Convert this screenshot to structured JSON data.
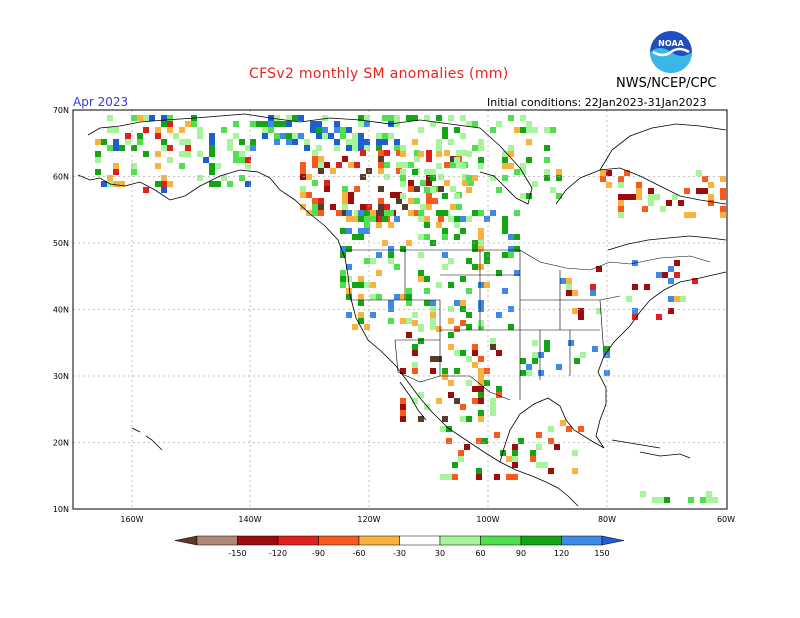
{
  "title": "CFSv2 monthly SM anomalies (mm)",
  "period": "Apr 2023",
  "initial_conditions": "Initial conditions: 22Jan2023-31Jan2023",
  "agency": "NWS/NCEP/CPC",
  "logo_text": "NOAA",
  "lat_labels": [
    "70N",
    "60N",
    "50N",
    "40N",
    "30N",
    "20N",
    "10N"
  ],
  "lon_labels": [
    "160W",
    "140W",
    "120W",
    "100W",
    "80W",
    "60W"
  ],
  "colorbar": {
    "labels": [
      "-150",
      "-120",
      "-90",
      "-60",
      "-30",
      "30",
      "60",
      "90",
      "120",
      "150"
    ],
    "colors": [
      "#5a3a2a",
      "#b08878",
      "#9c0c0c",
      "#e01f1f",
      "#f75a1c",
      "#f9b23d",
      "#ffffff",
      "#a6f49c",
      "#4fe04f",
      "#14a514",
      "#3f8ae6",
      "#1d5fd0"
    ]
  },
  "anomaly_colors": {
    "dry_extreme": "#5a3a2a",
    "dry_strong": "#9c0c0c",
    "dry": "#e01f1f",
    "dry_moderate": "#f75a1c",
    "dry_weak": "#f9b23d",
    "wet_weak": "#a6f49c",
    "wet_moderate": "#4fe04f",
    "wet": "#14a514",
    "wet_strong": "#3f8ae6",
    "wet_extreme": "#1d5fd0"
  }
}
